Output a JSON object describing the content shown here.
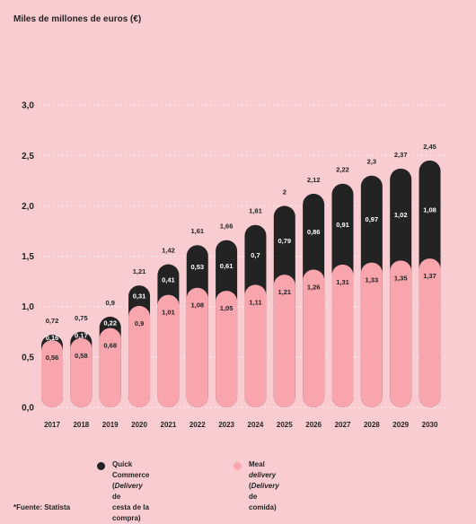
{
  "chart_data": {
    "type": "bar",
    "stacked": true,
    "title": "",
    "ylabel": "Miles de millones de euros (€)",
    "xlabel": "",
    "ylim": [
      0,
      3.0
    ],
    "yticks": [
      "0,0",
      "0,5",
      "1,0",
      "1,5",
      "2,0",
      "2,5",
      "3,0"
    ],
    "grid": true,
    "categories": [
      "2017",
      "2018",
      "2019",
      "2020",
      "2021",
      "2022",
      "2023",
      "2024",
      "2025",
      "2026",
      "2027",
      "2028",
      "2029",
      "2030"
    ],
    "series": [
      {
        "name": "Meal delivery (Delivery de comida)",
        "color": "#f8a5ad",
        "values": [
          0.56,
          0.58,
          0.68,
          0.9,
          1.01,
          1.08,
          1.05,
          1.11,
          1.21,
          1.26,
          1.31,
          1.33,
          1.35,
          1.37
        ],
        "labels": [
          "0,56",
          "0,58",
          "0,68",
          "0,9",
          "1,01",
          "1,08",
          "1,05",
          "1,11",
          "1,21",
          "1,26",
          "1,31",
          "1,33",
          "1,35",
          "1,37"
        ]
      },
      {
        "name": "Quick Commerce (Delivery de cesta de la compra)",
        "color": "#232323",
        "values": [
          0.16,
          0.17,
          0.22,
          0.31,
          0.41,
          0.53,
          0.61,
          0.7,
          0.79,
          0.86,
          0.91,
          0.97,
          1.02,
          1.08
        ],
        "labels": [
          "0,16",
          "0,17",
          "0,22",
          "0,31",
          "0,41",
          "0,53",
          "0,61",
          "0,7",
          "0,79",
          "0,86",
          "0,91",
          "0,97",
          "1,02",
          "1,08"
        ]
      }
    ],
    "totals": [
      0.72,
      0.75,
      0.9,
      1.21,
      1.42,
      1.61,
      1.66,
      1.81,
      2.0,
      2.12,
      2.22,
      2.3,
      2.37,
      2.45
    ],
    "total_labels": [
      "0,72",
      "0,75",
      "0,9",
      "1,21",
      "1,42",
      "1,61",
      "1,66",
      "1,81",
      "2",
      "2,12",
      "2,22",
      "2,3",
      "2,37",
      "2,45"
    ]
  },
  "legend": {
    "qc": {
      "text_1": "Quick Commerce (",
      "text_italic": "Delivery",
      "text_2": " de",
      "text_3": "cesta de la compra)"
    },
    "meal": {
      "text_1": "Meal ",
      "text_italic_1": "delivery",
      "text_2": " (",
      "text_italic_2": "Delivery",
      "text_3": " de comida)"
    }
  },
  "source": "*Fuente: Statista"
}
